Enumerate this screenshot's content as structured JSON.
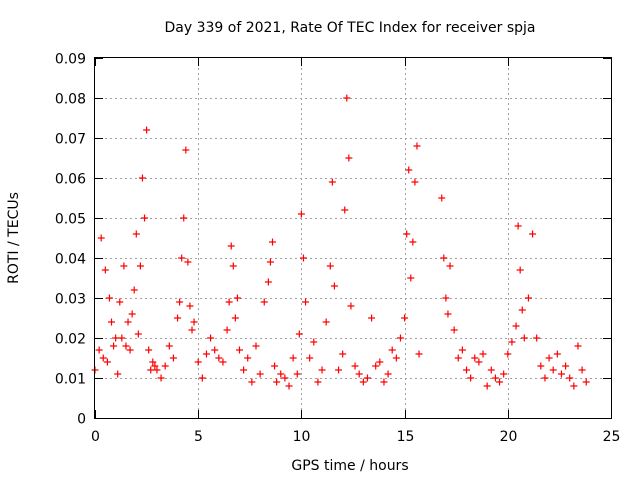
{
  "chart_data": {
    "type": "scatter",
    "title": "Day 339 of 2021, Rate Of TEC Index for receiver spja",
    "xlabel": "GPS time / hours",
    "ylabel": "ROTI / TECUs",
    "xlim": [
      0,
      25
    ],
    "ylim": [
      0,
      0.09
    ],
    "x_ticks": [
      0,
      5,
      10,
      15,
      20,
      25
    ],
    "x_tick_labels": [
      "0",
      "5",
      "10",
      "15",
      "20",
      "25"
    ],
    "y_ticks": [
      0,
      0.01,
      0.02,
      0.03,
      0.04,
      0.05,
      0.06,
      0.07,
      0.08,
      0.09
    ],
    "y_tick_labels": [
      "0",
      "0.01",
      "0.02",
      "0.03",
      "0.04",
      "0.05",
      "0.06",
      "0.07",
      "0.08",
      "0.09"
    ],
    "grid": true,
    "marker": "+",
    "color": "#ff0000",
    "series": [
      {
        "x": [
          0.0,
          0.2,
          0.3,
          0.4,
          0.5,
          0.6,
          0.7,
          0.8,
          0.9,
          1.0,
          1.1,
          1.2,
          1.3,
          1.4,
          1.5,
          1.6,
          1.7,
          1.8,
          1.9,
          2.0,
          2.1,
          2.2,
          2.3,
          2.4,
          2.5,
          2.6,
          2.7,
          2.8,
          2.9,
          3.0,
          3.2,
          3.4,
          3.6,
          3.8,
          4.0,
          4.1,
          4.2,
          4.3,
          4.4,
          4.5,
          4.6,
          4.7,
          4.8,
          5.0,
          5.2,
          5.4,
          5.6,
          5.8,
          6.0,
          6.2,
          6.4,
          6.5,
          6.6,
          6.7,
          6.8,
          6.9,
          7.0,
          7.2,
          7.4,
          7.6,
          7.8,
          8.0,
          8.2,
          8.4,
          8.5,
          8.6,
          8.7,
          8.8,
          9.0,
          9.2,
          9.4,
          9.6,
          9.8,
          9.9,
          10.0,
          10.1,
          10.2,
          10.4,
          10.6,
          10.8,
          11.0,
          11.2,
          11.4,
          11.5,
          11.6,
          11.8,
          12.0,
          12.1,
          12.2,
          12.3,
          12.4,
          12.6,
          12.8,
          13.0,
          13.2,
          13.4,
          13.6,
          13.8,
          14.0,
          14.2,
          14.4,
          14.6,
          14.8,
          15.0,
          15.1,
          15.2,
          15.3,
          15.4,
          15.5,
          15.6,
          15.7,
          16.8,
          16.9,
          17.0,
          17.1,
          17.2,
          17.4,
          17.6,
          17.8,
          18.0,
          18.2,
          18.4,
          18.6,
          18.8,
          19.0,
          19.2,
          19.4,
          19.6,
          19.8,
          20.0,
          20.2,
          20.4,
          20.5,
          20.6,
          20.7,
          20.8,
          21.0,
          21.2,
          21.4,
          21.6,
          21.8,
          22.0,
          22.2,
          22.4,
          22.6,
          22.8,
          23.0,
          23.2,
          23.4,
          23.6,
          23.8
        ],
        "y": [
          0.012,
          0.017,
          0.045,
          0.015,
          0.037,
          0.014,
          0.03,
          0.024,
          0.018,
          0.02,
          0.011,
          0.029,
          0.02,
          0.038,
          0.018,
          0.024,
          0.017,
          0.026,
          0.032,
          0.046,
          0.021,
          0.038,
          0.06,
          0.05,
          0.072,
          0.017,
          0.012,
          0.014,
          0.013,
          0.012,
          0.01,
          0.013,
          0.018,
          0.015,
          0.025,
          0.029,
          0.04,
          0.05,
          0.067,
          0.039,
          0.028,
          0.022,
          0.024,
          0.014,
          0.01,
          0.016,
          0.02,
          0.017,
          0.015,
          0.014,
          0.022,
          0.029,
          0.043,
          0.038,
          0.025,
          0.03,
          0.017,
          0.012,
          0.015,
          0.009,
          0.018,
          0.011,
          0.029,
          0.034,
          0.039,
          0.044,
          0.013,
          0.009,
          0.011,
          0.01,
          0.008,
          0.015,
          0.011,
          0.021,
          0.051,
          0.04,
          0.029,
          0.015,
          0.019,
          0.009,
          0.012,
          0.024,
          0.038,
          0.059,
          0.033,
          0.012,
          0.016,
          0.052,
          0.08,
          0.065,
          0.028,
          0.013,
          0.011,
          0.009,
          0.01,
          0.025,
          0.013,
          0.014,
          0.009,
          0.011,
          0.017,
          0.015,
          0.02,
          0.025,
          0.046,
          0.062,
          0.035,
          0.044,
          0.059,
          0.068,
          0.016,
          0.055,
          0.04,
          0.03,
          0.026,
          0.038,
          0.022,
          0.015,
          0.017,
          0.012,
          0.01,
          0.015,
          0.014,
          0.016,
          0.008,
          0.012,
          0.01,
          0.009,
          0.011,
          0.016,
          0.019,
          0.023,
          0.048,
          0.037,
          0.027,
          0.02,
          0.03,
          0.046,
          0.02,
          0.013,
          0.01,
          0.015,
          0.012,
          0.016,
          0.011,
          0.013,
          0.01,
          0.008,
          0.018,
          0.012,
          0.009
        ]
      }
    ]
  }
}
